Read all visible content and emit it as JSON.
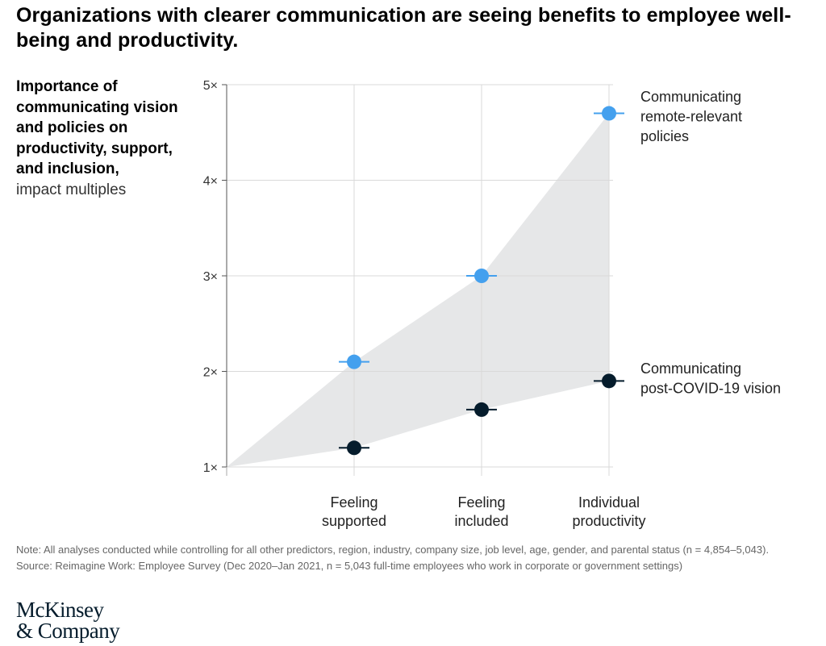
{
  "headline": "Organizations with clearer communication are seeing benefits to employee well-being and productivity.",
  "y_axis_title": {
    "bold": "Importance of communicating vision and policies on productivity, support, and inclusion,",
    "regular": "impact multiples"
  },
  "colors": {
    "series_remote": "#44a0ee",
    "series_covid": "#051c2c",
    "band": "#e6e7e8",
    "gridline": "#d9d9d9"
  },
  "chart_data": {
    "type": "scatter",
    "categories": [
      "",
      "Feeling supported",
      "Feeling included",
      "Individual productivity"
    ],
    "category_labels": [
      [
        "Feeling",
        "supported"
      ],
      [
        "Feeling",
        "included"
      ],
      [
        "Individual",
        "productivity"
      ]
    ],
    "y_ticks": [
      "1×",
      "2×",
      "3×",
      "4×",
      "5×"
    ],
    "ylim": [
      1,
      5
    ],
    "series": [
      {
        "name": "Communicating remote-relevant policies",
        "label_lines": [
          "Communicating",
          "remote-relevant",
          "policies"
        ],
        "values": [
          1,
          2.1,
          3.0,
          4.7
        ]
      },
      {
        "name": "Communicating post-COVID-19 vision",
        "label_lines": [
          "Communicating",
          "post-COVID-19 vision"
        ],
        "values": [
          1,
          1.2,
          1.6,
          1.9
        ]
      }
    ],
    "shaded_band_between_series": true,
    "grid": true,
    "legend": "direct labels at right"
  },
  "footnotes": {
    "note": "Note: All analyses conducted while controlling for all other predictors, region, industry, company size, job level, age, gender, and parental status (n = 4,854–5,043).",
    "source": "Source: Reimagine Work: Employee Survey (Dec 2020–Jan 2021, n = 5,043 full-time employees who work in corporate or government settings)"
  },
  "logo": {
    "line1": "McKinsey",
    "line2": "& Company"
  }
}
